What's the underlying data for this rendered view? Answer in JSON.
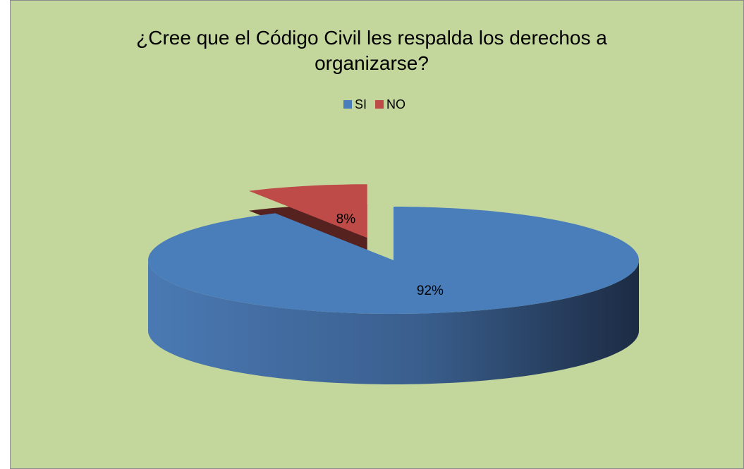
{
  "chart_data": {
    "type": "pie3d",
    "title": "¿Cree que el Código Civil les respalda los derechos a organizarse?",
    "categories": [
      "SI",
      "NO"
    ],
    "values": [
      92,
      8
    ],
    "value_labels": [
      "92%",
      "8%"
    ],
    "colors": [
      "#4a7ebb",
      "#be4b48"
    ],
    "legend": "top"
  }
}
